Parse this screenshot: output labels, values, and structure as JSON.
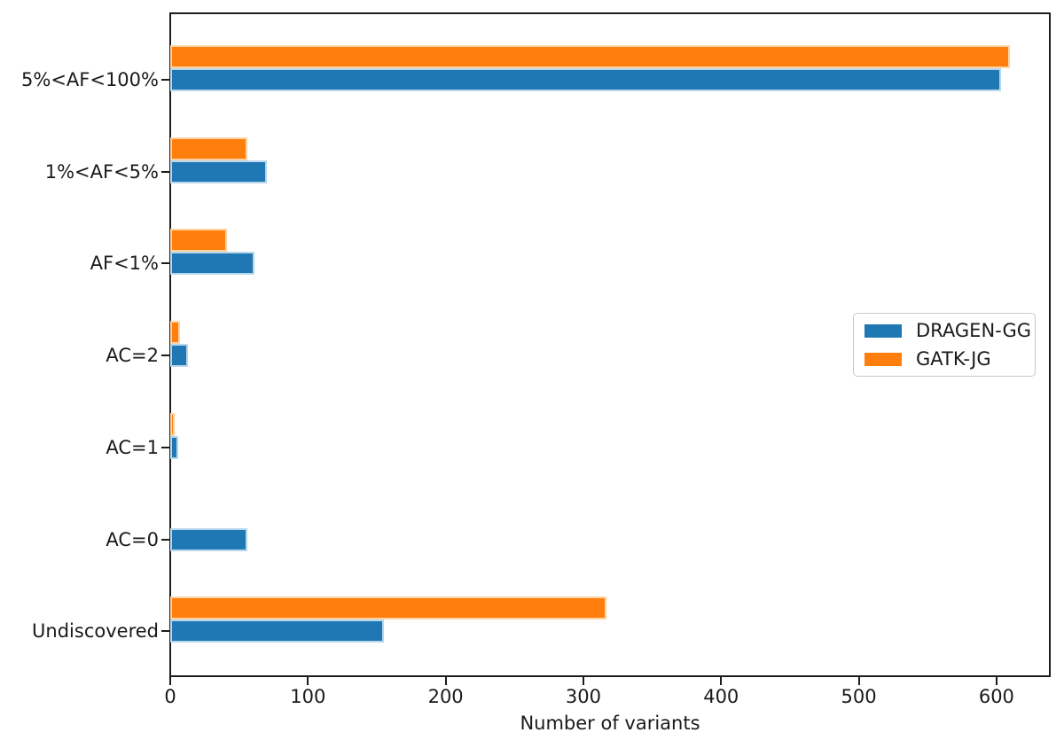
{
  "chart_data": {
    "type": "bar",
    "orientation": "horizontal",
    "title": "",
    "xlabel": "Number of variants",
    "ylabel": "",
    "xlim": [
      0,
      640
    ],
    "x_ticks": [
      0,
      100,
      200,
      300,
      400,
      500,
      600
    ],
    "grid": false,
    "legend_position": "center-right",
    "categories_top_to_bottom": [
      "5%<AF<100%",
      "1%<AF<5%",
      "AF<1%",
      "AC=2",
      "AC=1",
      "AC=0",
      "Undiscovered"
    ],
    "series": [
      {
        "name": "DRAGEN-GG",
        "color": "#1f77b4",
        "edge_color": "#b9d7ea",
        "values": [
          603,
          70,
          61,
          13,
          6,
          56,
          155
        ]
      },
      {
        "name": "GATK-JG",
        "color": "#ff7f0e",
        "edge_color": "#ffd3a6",
        "values": [
          610,
          56,
          41,
          7,
          3,
          0,
          317
        ]
      }
    ]
  },
  "colors": {
    "background": "#ffffff",
    "spine": "#1c1c1c",
    "text": "#1a1a1a",
    "legend_border": "#c8c8c8"
  }
}
